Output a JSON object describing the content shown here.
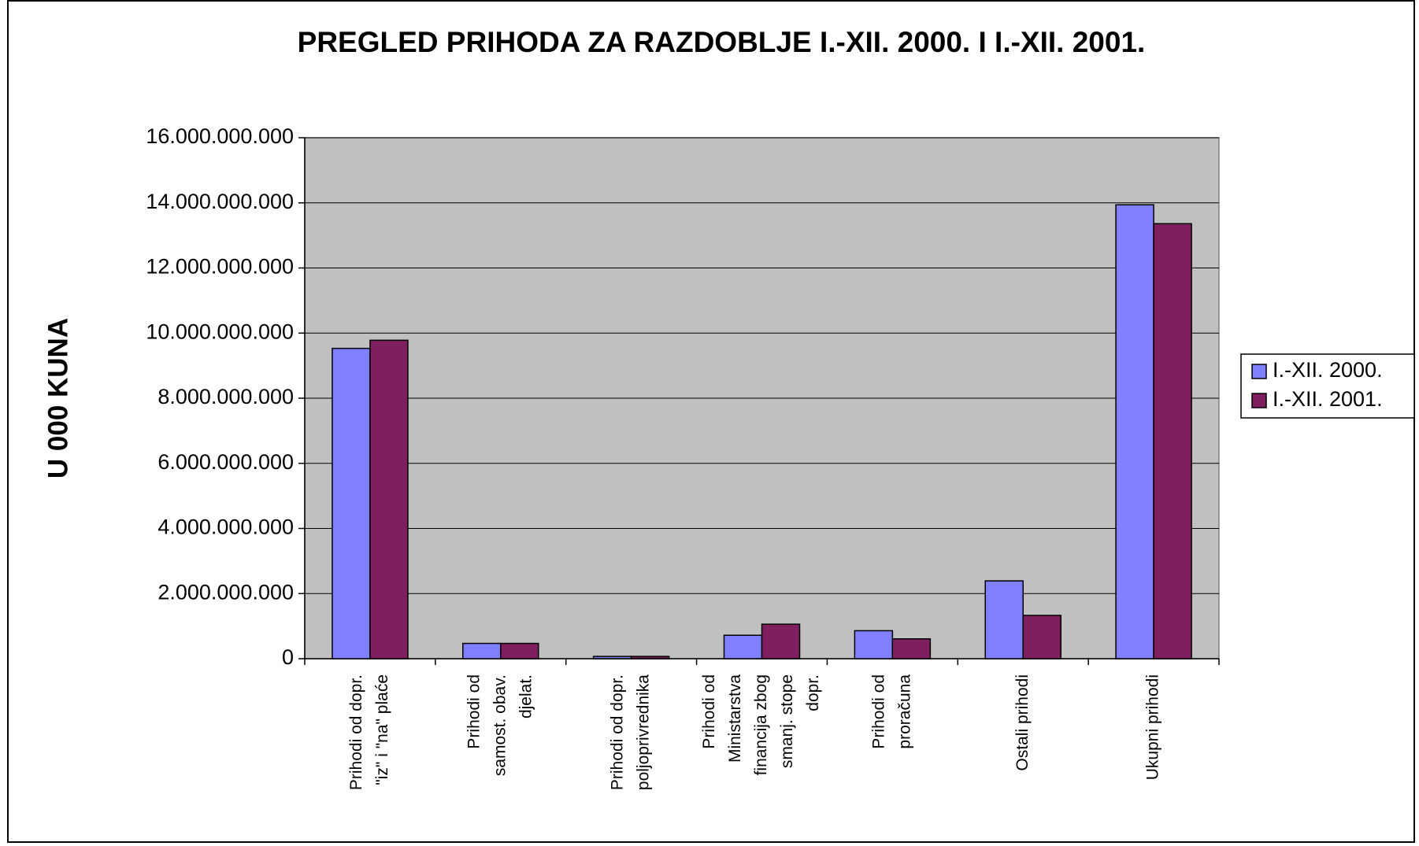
{
  "chart_data": {
    "type": "bar",
    "title": "PREGLED PRIHODA ZA RAZDOBLJE I.-XII. 2000. I I.-XII. 2001.",
    "y_label": "U 000 KUNA",
    "categories": [
      [
        "Prihodi od dopr.",
        "\"iz\" i \"na\" plaće"
      ],
      [
        "Prihodi od",
        "samost. obav.",
        "djelat."
      ],
      [
        "Prihodi od dopr.",
        "poljoprivrednika"
      ],
      [
        "Prihodi od",
        "Ministarstva",
        "financija zbog",
        "smanj. stope",
        "dopr."
      ],
      [
        "Prihodi od",
        "proračuna"
      ],
      [
        "Ostali prihodi"
      ],
      [
        "Ukupni prihodi"
      ]
    ],
    "series": [
      {
        "name": "I.-XII. 2000.",
        "color": "#8080ff",
        "values": [
          9530000000,
          470000000,
          70000000,
          720000000,
          860000000,
          2390000000,
          13940000000
        ]
      },
      {
        "name": "I.-XII. 2001.",
        "color": "#7f1f5f",
        "values": [
          9780000000,
          470000000,
          70000000,
          1060000000,
          610000000,
          1330000000,
          13360000000
        ]
      }
    ],
    "ylim": [
      0,
      16000000000
    ],
    "yticks": [
      0,
      {
        "value": 2000000000,
        "label": "2.000.000.000"
      },
      {
        "value": 4000000000,
        "label": "4.000.000.000"
      },
      {
        "value": 6000000000,
        "label": "6.000.000.000"
      },
      {
        "value": 8000000000,
        "label": "8.000.000.000"
      },
      {
        "value": 10000000000,
        "label": "10.000.000.000"
      },
      {
        "value": 12000000000,
        "label": "12.000.000.000"
      },
      {
        "value": 14000000000,
        "label": "14.000.000.000"
      },
      {
        "value": 16000000000,
        "label": "16.000.000.000"
      }
    ],
    "grid": true,
    "legend": "right"
  }
}
